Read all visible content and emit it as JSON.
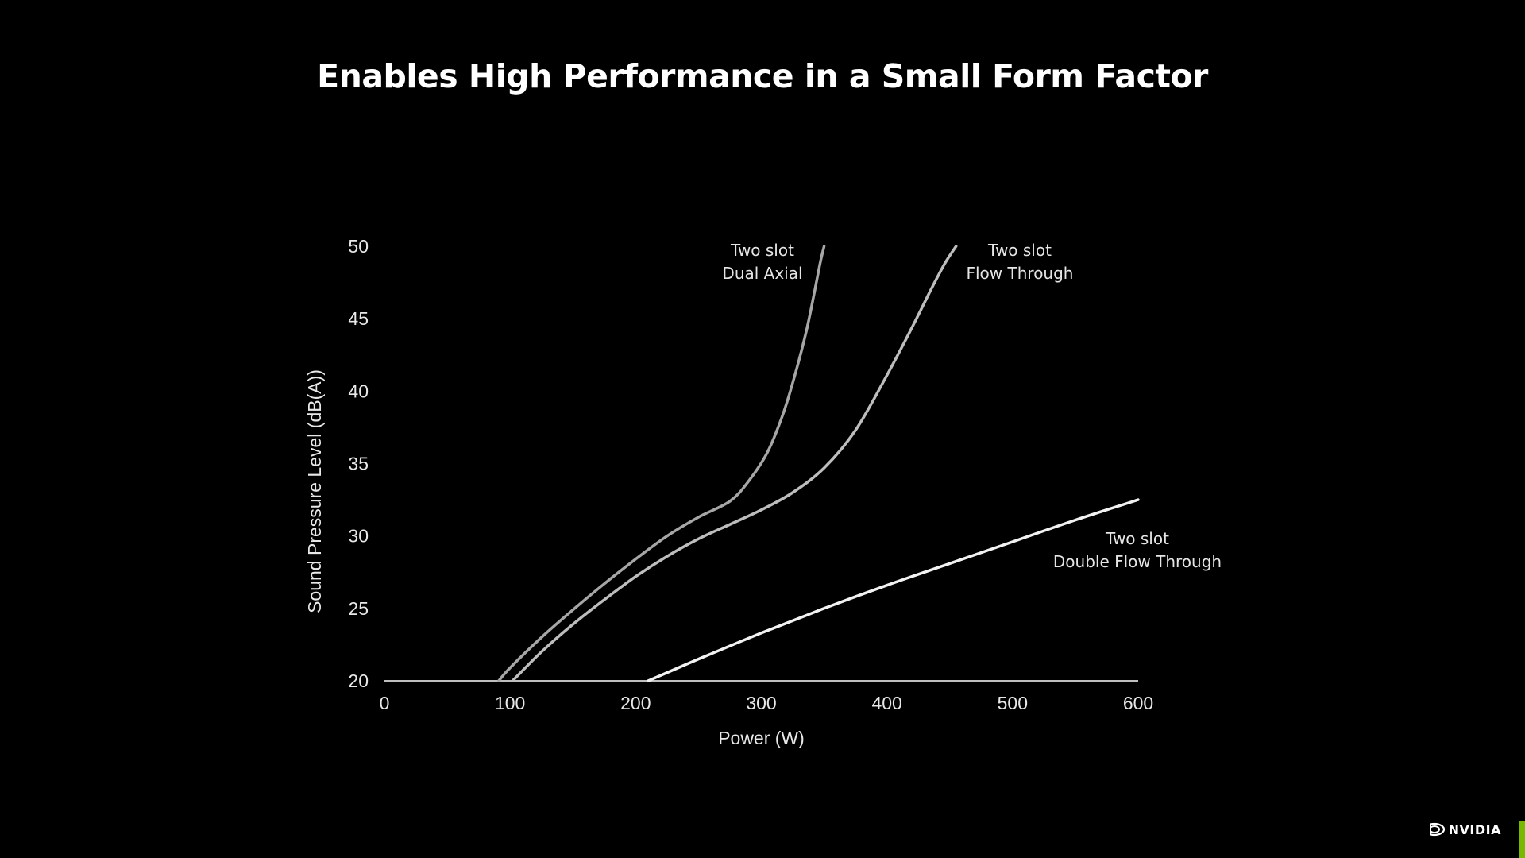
{
  "slide": {
    "title": "Enables High Performance in a Small Form Factor",
    "logo_text": "NVIDIA",
    "accent_color": "#76b900"
  },
  "chart_data": {
    "type": "line",
    "title": "Enables High Performance in a Small Form Factor",
    "xlabel": "Power (W)",
    "ylabel": "Sound Pressure Level (dB(A))",
    "xlim": [
      0,
      600
    ],
    "ylim": [
      20,
      50
    ],
    "x_ticks": [
      0,
      100,
      200,
      300,
      400,
      500,
      600
    ],
    "y_ticks": [
      20,
      25,
      30,
      35,
      40,
      45,
      50
    ],
    "grid": false,
    "series": [
      {
        "name": "Two slot Dual Axial",
        "label_lines": [
          "Two slot",
          "Dual Axial"
        ],
        "color": "#a6a6a6",
        "x": [
          91,
          100,
          125,
          150,
          175,
          200,
          225,
          250,
          275,
          290,
          305,
          318,
          328,
          336,
          342,
          347,
          350
        ],
        "y": [
          20,
          20.9,
          23.0,
          24.9,
          26.7,
          28.4,
          30.0,
          31.3,
          32.4,
          33.8,
          35.8,
          38.6,
          41.5,
          44.2,
          46.7,
          48.9,
          50
        ]
      },
      {
        "name": "Two slot Flow Through",
        "label_lines": [
          "Two slot",
          "Flow Through"
        ],
        "color": "#bdbdbd",
        "x": [
          102,
          125,
          150,
          175,
          200,
          225,
          250,
          275,
          300,
          325,
          350,
          375,
          400,
          420,
          435,
          446,
          455
        ],
        "y": [
          20,
          22.0,
          23.9,
          25.6,
          27.2,
          28.6,
          29.8,
          30.8,
          31.8,
          33.0,
          34.7,
          37.3,
          41.1,
          44.4,
          47.0,
          48.8,
          50
        ]
      },
      {
        "name": "Two slot Double Flow Through",
        "label_lines": [
          "Two slot",
          "Double Flow Through"
        ],
        "color": "#f2f2f2",
        "x": [
          210,
          250,
          300,
          350,
          400,
          450,
          500,
          550,
          600
        ],
        "y": [
          20,
          21.5,
          23.3,
          25.0,
          26.6,
          28.1,
          29.6,
          31.1,
          32.5
        ]
      }
    ]
  }
}
